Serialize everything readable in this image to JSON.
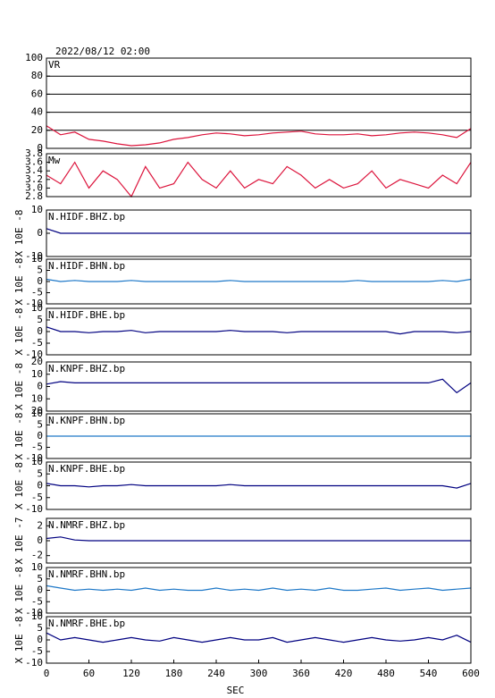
{
  "chart_data": [
    {
      "type": "line",
      "title": "2022/08/12 02:00",
      "x": [
        0,
        20,
        40,
        60,
        80,
        100,
        120,
        140,
        160,
        180,
        200,
        220,
        240,
        260,
        280,
        300,
        320,
        340,
        360,
        380,
        400,
        420,
        440,
        460,
        480,
        500,
        520,
        540,
        560,
        580,
        600
      ],
      "xlim": [
        0,
        600
      ],
      "ylim": [
        0,
        100
      ],
      "yticks": [
        0,
        20,
        40,
        60,
        80,
        100
      ],
      "grid": true,
      "series": [
        {
          "name": "VR",
          "color": "#dc143c",
          "values": [
            25,
            15,
            18,
            10,
            8,
            5,
            3,
            4,
            6,
            10,
            12,
            15,
            17,
            16,
            14,
            15,
            17,
            18,
            19,
            16,
            15,
            15,
            16,
            14,
            15,
            17,
            18,
            17,
            15,
            12,
            22
          ]
        }
      ]
    },
    {
      "type": "line",
      "x": [
        0,
        20,
        40,
        60,
        80,
        100,
        120,
        140,
        160,
        180,
        200,
        220,
        240,
        260,
        280,
        300,
        320,
        340,
        360,
        380,
        400,
        420,
        440,
        460,
        480,
        500,
        520,
        540,
        560,
        580,
        600
      ],
      "xlim": [
        0,
        600
      ],
      "ylim": [
        2.8,
        3.8
      ],
      "yticks": [
        2.8,
        {
          "value": 3,
          "label": "3.0"
        },
        3.2,
        3.4,
        3.6,
        3.8
      ],
      "series": [
        {
          "name": "Mw",
          "color": "#dc143c",
          "values": [
            3.3,
            3.1,
            3.6,
            3.0,
            3.4,
            3.2,
            2.8,
            3.5,
            3.0,
            3.1,
            3.6,
            3.2,
            3.0,
            3.4,
            3.0,
            3.2,
            3.1,
            3.5,
            3.3,
            3.0,
            3.2,
            3.0,
            3.1,
            3.4,
            3.0,
            3.2,
            3.1,
            3.0,
            3.3,
            3.1,
            3.6
          ]
        }
      ]
    },
    {
      "type": "line",
      "ylabel": "X 10E -8",
      "x": [
        0,
        20,
        40,
        60,
        80,
        100,
        120,
        140,
        160,
        180,
        200,
        220,
        240,
        260,
        280,
        300,
        320,
        340,
        360,
        380,
        400,
        420,
        440,
        460,
        480,
        500,
        520,
        540,
        560,
        580,
        600
      ],
      "xlim": [
        0,
        600
      ],
      "ylim": [
        -10,
        10
      ],
      "yticks": [
        -10,
        0,
        10
      ],
      "series": [
        {
          "name": "N.HIDF.BHZ.bp",
          "color": "#000080",
          "values": [
            2,
            0,
            0,
            0,
            0,
            0,
            0,
            0,
            0,
            0,
            0,
            0,
            0,
            0,
            0,
            0,
            0,
            0,
            0,
            0,
            0,
            0,
            0,
            0,
            0,
            0,
            0,
            0,
            0,
            0,
            0
          ]
        }
      ]
    },
    {
      "type": "line",
      "ylabel": "X 10E -8",
      "x": [
        0,
        20,
        40,
        60,
        80,
        100,
        120,
        140,
        160,
        180,
        200,
        220,
        240,
        260,
        280,
        300,
        320,
        340,
        360,
        380,
        400,
        420,
        440,
        460,
        480,
        500,
        520,
        540,
        560,
        580,
        600
      ],
      "xlim": [
        0,
        600
      ],
      "ylim": [
        -10,
        10
      ],
      "yticks": [
        -10,
        -5,
        0,
        5,
        10
      ],
      "series": [
        {
          "name": "N.HIDF.BHN.bp",
          "color": "#1e78c8",
          "values": [
            1,
            0,
            0.5,
            0,
            0,
            0,
            0.5,
            0,
            0,
            0,
            0,
            0,
            0,
            0.5,
            0,
            0,
            0,
            0,
            0,
            0,
            0,
            0,
            0.5,
            0,
            0,
            0,
            0,
            0,
            0.5,
            0,
            1
          ]
        }
      ]
    },
    {
      "type": "line",
      "ylabel": "X 10E -8",
      "x": [
        0,
        20,
        40,
        60,
        80,
        100,
        120,
        140,
        160,
        180,
        200,
        220,
        240,
        260,
        280,
        300,
        320,
        340,
        360,
        380,
        400,
        420,
        440,
        460,
        480,
        500,
        520,
        540,
        560,
        580,
        600
      ],
      "xlim": [
        0,
        600
      ],
      "ylim": [
        -10,
        10
      ],
      "yticks": [
        -10,
        -5,
        0,
        5,
        10
      ],
      "series": [
        {
          "name": "N.HIDF.BHE.bp",
          "color": "#000080",
          "values": [
            2,
            0,
            0,
            -0.5,
            0,
            0,
            0.5,
            -0.5,
            0,
            0,
            0,
            0,
            0,
            0.5,
            0,
            0,
            0,
            -0.5,
            0,
            0,
            0,
            0,
            0,
            0,
            0,
            -1,
            0,
            0,
            0,
            -0.5,
            0
          ]
        }
      ]
    },
    {
      "type": "line",
      "ylabel": "X 10E -8",
      "x": [
        0,
        20,
        40,
        60,
        80,
        100,
        120,
        140,
        160,
        180,
        200,
        220,
        240,
        260,
        280,
        300,
        320,
        340,
        360,
        380,
        400,
        420,
        440,
        460,
        480,
        500,
        520,
        540,
        560,
        580,
        600
      ],
      "xlim": [
        0,
        600
      ],
      "ylim": [
        -20,
        20
      ],
      "yticks": [
        {
          "value": -20,
          "label": "20"
        },
        {
          "value": -10,
          "label": "10"
        },
        0,
        10,
        20
      ],
      "series": [
        {
          "name": "N.KNPF.BHZ.bp",
          "color": "#000080",
          "values": [
            2,
            4,
            3,
            3,
            3,
            3,
            3,
            3,
            3,
            3,
            3,
            3,
            3,
            3,
            3,
            3,
            3,
            3,
            3,
            3,
            3,
            3,
            3,
            3,
            3,
            3,
            3,
            3,
            6,
            -5,
            3
          ]
        }
      ]
    },
    {
      "type": "line",
      "ylabel": "X 10E -8",
      "x": [
        0,
        20,
        40,
        60,
        80,
        100,
        120,
        140,
        160,
        180,
        200,
        220,
        240,
        260,
        280,
        300,
        320,
        340,
        360,
        380,
        400,
        420,
        440,
        460,
        480,
        500,
        520,
        540,
        560,
        580,
        600
      ],
      "xlim": [
        0,
        600
      ],
      "ylim": [
        -10,
        10
      ],
      "yticks": [
        -10,
        -5,
        0,
        5,
        10
      ],
      "series": [
        {
          "name": "N.KNPF.BHN.bp",
          "color": "#1e78c8",
          "values": [
            0,
            0,
            0,
            0,
            0,
            0,
            0,
            0,
            0,
            0,
            0,
            0,
            0,
            0,
            0,
            0,
            0,
            0,
            0,
            0,
            0,
            0,
            0,
            0,
            0,
            0,
            0,
            0,
            0,
            0,
            0
          ]
        }
      ]
    },
    {
      "type": "line",
      "ylabel": "X 10E -8",
      "x": [
        0,
        20,
        40,
        60,
        80,
        100,
        120,
        140,
        160,
        180,
        200,
        220,
        240,
        260,
        280,
        300,
        320,
        340,
        360,
        380,
        400,
        420,
        440,
        460,
        480,
        500,
        520,
        540,
        560,
        580,
        600
      ],
      "xlim": [
        0,
        600
      ],
      "ylim": [
        -10,
        10
      ],
      "yticks": [
        -10,
        -5,
        0,
        5,
        10
      ],
      "series": [
        {
          "name": "N.KNPF.BHE.bp",
          "color": "#000080",
          "values": [
            1,
            0,
            0,
            -0.5,
            0,
            0,
            0.5,
            0,
            0,
            0,
            0,
            0,
            0,
            0.5,
            0,
            0,
            0,
            0,
            0,
            0,
            0,
            0,
            0,
            0,
            0,
            0,
            0,
            0,
            0,
            -1,
            1
          ]
        }
      ]
    },
    {
      "type": "line",
      "ylabel": "X 10E -7",
      "x": [
        0,
        20,
        40,
        60,
        80,
        100,
        120,
        140,
        160,
        180,
        200,
        220,
        240,
        260,
        280,
        300,
        320,
        340,
        360,
        380,
        400,
        420,
        440,
        460,
        480,
        500,
        520,
        540,
        560,
        580,
        600
      ],
      "xlim": [
        0,
        600
      ],
      "ylim": [
        -3,
        3
      ],
      "yticks": [
        -2,
        0,
        2
      ],
      "series": [
        {
          "name": "N.NMRF.BHZ.bp",
          "color": "#000080",
          "values": [
            0.3,
            0.5,
            0.1,
            0,
            0,
            0,
            0,
            0,
            0,
            0,
            0,
            0,
            0,
            0,
            0,
            0,
            0,
            0,
            0,
            0,
            0,
            0,
            0,
            0,
            0,
            0,
            0,
            0,
            0,
            0,
            0
          ]
        }
      ]
    },
    {
      "type": "line",
      "ylabel": "X 10E -8",
      "x": [
        0,
        20,
        40,
        60,
        80,
        100,
        120,
        140,
        160,
        180,
        200,
        220,
        240,
        260,
        280,
        300,
        320,
        340,
        360,
        380,
        400,
        420,
        440,
        460,
        480,
        500,
        520,
        540,
        560,
        580,
        600
      ],
      "xlim": [
        0,
        600
      ],
      "ylim": [
        -10,
        10
      ],
      "yticks": [
        -10,
        -5,
        0,
        5,
        10
      ],
      "series": [
        {
          "name": "N.NMRF.BHN.bp",
          "color": "#1e78c8",
          "values": [
            2,
            1,
            0,
            0.5,
            0,
            0.5,
            0,
            1,
            0,
            0.5,
            0,
            0,
            1,
            0,
            0.5,
            0,
            1,
            0,
            0.5,
            0,
            1,
            0,
            0,
            0.5,
            1,
            0,
            0.5,
            1,
            0,
            0.5,
            1
          ]
        }
      ]
    },
    {
      "type": "line",
      "ylabel": "X 10E -8",
      "xlabel": "SEC",
      "x": [
        0,
        20,
        40,
        60,
        80,
        100,
        120,
        140,
        160,
        180,
        200,
        220,
        240,
        260,
        280,
        300,
        320,
        340,
        360,
        380,
        400,
        420,
        440,
        460,
        480,
        500,
        520,
        540,
        560,
        580,
        600
      ],
      "xlim": [
        0,
        600
      ],
      "xticks": [
        0,
        60,
        120,
        180,
        240,
        300,
        360,
        420,
        480,
        540,
        600
      ],
      "ylim": [
        -10,
        10
      ],
      "yticks": [
        -10,
        -5,
        0,
        5,
        10
      ],
      "series": [
        {
          "name": "N.NMRF.BHE.bp",
          "color": "#000080",
          "values": [
            3,
            0,
            1,
            0,
            -1,
            0,
            1,
            0,
            -0.5,
            1,
            0,
            -1,
            0,
            1,
            0,
            0,
            1,
            -1,
            0,
            1,
            0,
            -1,
            0,
            1,
            0,
            -0.5,
            0,
            1,
            0,
            2,
            -1
          ]
        }
      ]
    }
  ]
}
